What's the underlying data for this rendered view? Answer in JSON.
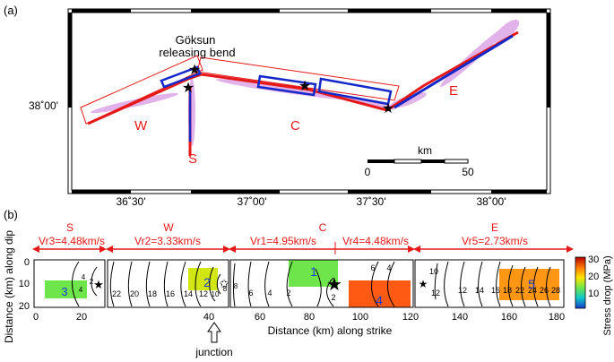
{
  "panel_a": {
    "label": "(a)",
    "lat_label": "38˚00'",
    "lon_labels": [
      "36˚30'",
      "37˚00'",
      "37˚30'",
      "38˚00'"
    ],
    "annotation_line1": "Göksun",
    "annotation_line2": "releasing bend",
    "segments": {
      "W": "W",
      "C": "C",
      "E": "E",
      "S": "S"
    },
    "scalebar": {
      "unit": "km",
      "start": "0",
      "end": "50"
    }
  },
  "panel_b": {
    "label": "(b)",
    "segment_names": {
      "S": "S",
      "W": "W",
      "C": "C",
      "E": "E"
    },
    "rupture_velocities": {
      "vr3": "Vr3=4.48km/s",
      "vr2": "Vr2=3.33km/s",
      "vr1": "Vr1=4.95km/s",
      "vr4": "Vr4=4.48km/s",
      "vr5": "Vr5=2.73km/s"
    },
    "ylabel": "Distance (km) along dip",
    "xlabel": "Distance (km) along strike",
    "yticks": [
      "0",
      "10",
      "20"
    ],
    "xticks_S": [
      "0",
      "20"
    ],
    "xticks_main": [
      "40",
      "60",
      "80",
      "100",
      "120",
      "140",
      "160",
      "180"
    ],
    "junction": "junction",
    "patches": [
      "1",
      "2",
      "3",
      "4",
      "5"
    ],
    "contours": {
      "S": [
        "4",
        "2",
        "4"
      ],
      "W": [
        "22",
        "20",
        "18",
        "16",
        "14",
        "12",
        "10",
        "8"
      ],
      "C": [
        "8",
        "6",
        "4",
        "2",
        "2",
        "6",
        "4"
      ],
      "E": [
        "12",
        "10",
        "12",
        "14",
        "16",
        "18",
        "22",
        "24",
        "26",
        "28"
      ]
    }
  },
  "colorbar": {
    "label": "Stress drop (MPa)",
    "ticks": [
      "30",
      "20",
      "10"
    ],
    "colors": [
      "#b40000",
      "#ff7800",
      "#ffe600",
      "#6ee64b",
      "#0fc8c8",
      "#1a3cd2"
    ]
  }
}
